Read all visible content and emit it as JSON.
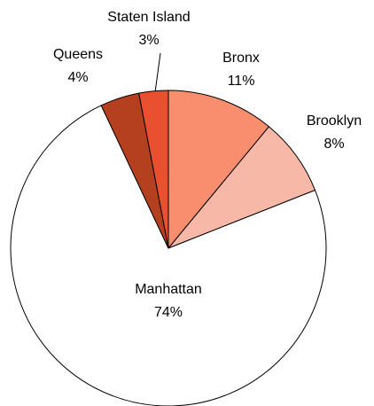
{
  "chart_data": {
    "type": "pie",
    "categories": [
      "Bronx",
      "Brooklyn",
      "Manhattan",
      "Queens",
      "Staten Island"
    ],
    "values": [
      11,
      8,
      74,
      4,
      3
    ],
    "value_labels": [
      "11%",
      "8%",
      "74%",
      "4%",
      "3%"
    ],
    "colors": [
      "#f98e6e",
      "#f7b8a7",
      "#ffffff",
      "#b5401f",
      "#e8502f"
    ]
  }
}
